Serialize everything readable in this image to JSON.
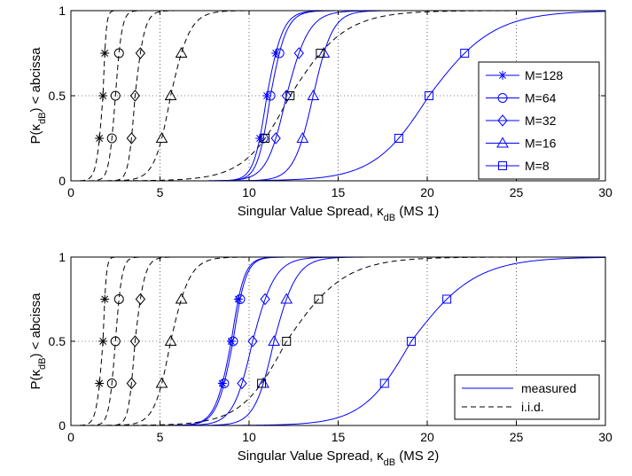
{
  "styles": {
    "measured_color": "#0000ff",
    "iid_color": "#000000"
  },
  "chart_data": [
    {
      "type": "line",
      "xlabel_main": "Singular Value Spread, κ",
      "xlabel_sub": "dB",
      "xlabel_tail": " (MS 1)",
      "ylabel_main": "P(κ",
      "ylabel_sub": "dB",
      "ylabel_tail": ") < abcissa",
      "xlim": [
        0,
        30
      ],
      "ylim": [
        0,
        1
      ],
      "xticks": [
        0,
        5,
        10,
        15,
        20,
        25,
        30
      ],
      "yticks": [
        0,
        0.5,
        1
      ],
      "ytick_labels": [
        "0",
        "0.5",
        "1"
      ],
      "grid": true,
      "legend_position": "right",
      "legend": [
        {
          "label": "M=128",
          "marker": "asterisk"
        },
        {
          "label": "M=64",
          "marker": "circle"
        },
        {
          "label": "M=32",
          "marker": "diamond"
        },
        {
          "label": "M=16",
          "marker": "triangle"
        },
        {
          "label": "M=8",
          "marker": "square"
        }
      ],
      "series": [
        {
          "group": "measured",
          "M": 128,
          "marker": "asterisk",
          "x_at_p": {
            "0.25": 10.6,
            "0.5": 11.0,
            "0.75": 11.5
          }
        },
        {
          "group": "measured",
          "M": 64,
          "marker": "circle",
          "x_at_p": {
            "0.25": 10.8,
            "0.5": 11.2,
            "0.75": 11.7
          }
        },
        {
          "group": "measured",
          "M": 32,
          "marker": "diamond",
          "x_at_p": {
            "0.25": 11.5,
            "0.5": 12.1,
            "0.75": 12.8
          }
        },
        {
          "group": "measured",
          "M": 16,
          "marker": "triangle",
          "x_at_p": {
            "0.25": 13.0,
            "0.5": 13.6,
            "0.75": 14.2
          }
        },
        {
          "group": "measured",
          "M": 8,
          "marker": "square",
          "x_at_p": {
            "0.25": 18.4,
            "0.5": 20.1,
            "0.75": 22.1
          }
        },
        {
          "group": "iid",
          "M": 128,
          "marker": "asterisk",
          "x_at_p": {
            "0.25": 1.6,
            "0.5": 1.8,
            "0.75": 1.9
          }
        },
        {
          "group": "iid",
          "M": 64,
          "marker": "circle",
          "x_at_p": {
            "0.25": 2.3,
            "0.5": 2.5,
            "0.75": 2.7
          }
        },
        {
          "group": "iid",
          "M": 32,
          "marker": "diamond",
          "x_at_p": {
            "0.25": 3.4,
            "0.5": 3.6,
            "0.75": 3.9
          }
        },
        {
          "group": "iid",
          "M": 16,
          "marker": "triangle",
          "x_at_p": {
            "0.25": 5.1,
            "0.5": 5.6,
            "0.75": 6.2
          }
        },
        {
          "group": "iid",
          "M": 8,
          "marker": "square",
          "x_at_p": {
            "0.25": 10.9,
            "0.5": 12.3,
            "0.75": 14.0
          }
        }
      ]
    },
    {
      "type": "line",
      "xlabel_main": "Singular Value Spread, κ",
      "xlabel_sub": "dB",
      "xlabel_tail": " (MS 2)",
      "ylabel_main": "P(κ",
      "ylabel_sub": "dB",
      "ylabel_tail": ") < abcissa",
      "xlim": [
        0,
        30
      ],
      "ylim": [
        0,
        1
      ],
      "xticks": [
        0,
        5,
        10,
        15,
        20,
        25,
        30
      ],
      "yticks": [
        0,
        0.5,
        1
      ],
      "ytick_labels": [
        "0",
        "0.5",
        "1"
      ],
      "grid": true,
      "legend_position": "bottom-right",
      "legend": [
        {
          "label": "measured",
          "style": "solid"
        },
        {
          "label": "i.i.d.",
          "style": "dashed"
        }
      ],
      "series": [
        {
          "group": "measured",
          "M": 128,
          "marker": "asterisk",
          "x_at_p": {
            "0.25": 8.5,
            "0.5": 9.0,
            "0.75": 9.4
          }
        },
        {
          "group": "measured",
          "M": 64,
          "marker": "circle",
          "x_at_p": {
            "0.25": 8.6,
            "0.5": 9.1,
            "0.75": 9.5
          }
        },
        {
          "group": "measured",
          "M": 32,
          "marker": "diamond",
          "x_at_p": {
            "0.25": 9.6,
            "0.5": 10.2,
            "0.75": 10.9
          }
        },
        {
          "group": "measured",
          "M": 16,
          "marker": "triangle",
          "x_at_p": {
            "0.25": 10.8,
            "0.5": 11.4,
            "0.75": 12.1
          }
        },
        {
          "group": "measured",
          "M": 8,
          "marker": "square",
          "x_at_p": {
            "0.25": 17.6,
            "0.5": 19.1,
            "0.75": 21.1
          }
        },
        {
          "group": "iid",
          "M": 128,
          "marker": "asterisk",
          "x_at_p": {
            "0.25": 1.6,
            "0.5": 1.8,
            "0.75": 1.9
          }
        },
        {
          "group": "iid",
          "M": 64,
          "marker": "circle",
          "x_at_p": {
            "0.25": 2.3,
            "0.5": 2.5,
            "0.75": 2.7
          }
        },
        {
          "group": "iid",
          "M": 32,
          "marker": "diamond",
          "x_at_p": {
            "0.25": 3.4,
            "0.5": 3.6,
            "0.75": 3.9
          }
        },
        {
          "group": "iid",
          "M": 16,
          "marker": "triangle",
          "x_at_p": {
            "0.25": 5.1,
            "0.5": 5.6,
            "0.75": 6.2
          }
        },
        {
          "group": "iid",
          "M": 8,
          "marker": "square",
          "x_at_p": {
            "0.25": 10.7,
            "0.5": 12.1,
            "0.75": 13.9
          }
        }
      ]
    }
  ]
}
